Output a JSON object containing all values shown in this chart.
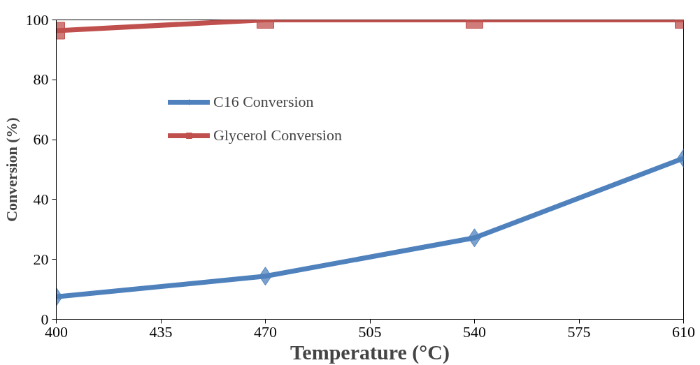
{
  "chart_data": {
    "type": "line",
    "xlabel": "Temperature (°C)",
    "ylabel": "Conversion (%)",
    "x": [
      400,
      470,
      540,
      610
    ],
    "series": [
      {
        "name": "C16 Conversion",
        "color": "#4f81bd",
        "marker": "diamond",
        "values": [
          7.5,
          14.4,
          27.2,
          53.8
        ]
      },
      {
        "name": "Glycerol Conversion",
        "color": "#c0504d",
        "marker": "square",
        "values": [
          96.4,
          100,
          100,
          100
        ]
      }
    ],
    "xlim": [
      400,
      610
    ],
    "xticks": [
      400,
      435,
      470,
      505,
      540,
      575,
      610
    ],
    "ylim": [
      0,
      100
    ],
    "yticks": [
      0,
      20,
      40,
      60,
      80,
      100
    ],
    "grid": false,
    "legend": "top left",
    "line_style": "solid"
  }
}
